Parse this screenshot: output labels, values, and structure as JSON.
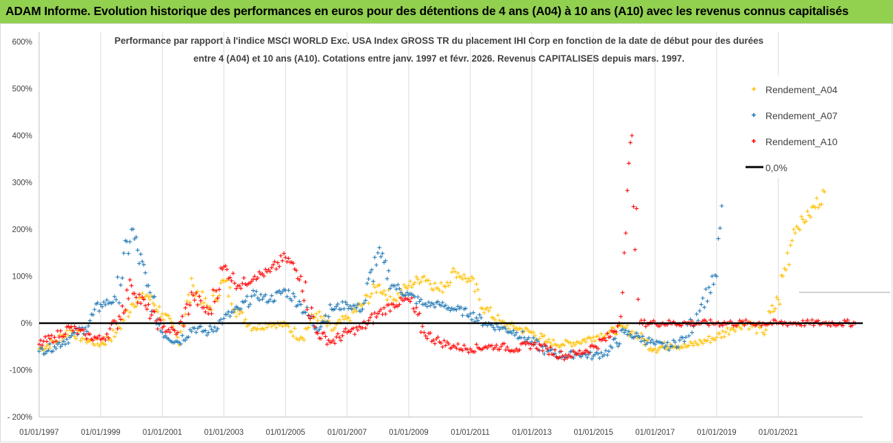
{
  "banner": {
    "title": "ADAM Informe. Evolution historique des performances en euros pour des détentions de 4 ans (A04) à 10 ans (A10) avec les revenus connus capitalisés"
  },
  "chart_data": {
    "type": "scatter",
    "title_line1": "Performance par rapport à l'indice MSCI WORLD Exc. USA Index GROSS TR  du placement IHI Corp en fonction de la date de début pour des durées",
    "title_line2": "entre 4 (A04) et 10 ans (A10). Cotations entre janv. 1997 et févr. 2026. Revenus CAPITALISES depuis mars. 1997.",
    "x_range": [
      "1997-01-01",
      "2023-09-30"
    ],
    "x_ticks": [
      "01/01/1997",
      "01/01/1999",
      "01/01/2001",
      "01/01/2003",
      "01/01/2005",
      "01/01/2007",
      "01/01/2009",
      "01/01/2011",
      "01/01/2013",
      "01/01/2015",
      "01/01/2017",
      "01/01/2019",
      "01/01/2021"
    ],
    "y_range": [
      -200,
      600
    ],
    "y_ticks": [
      "- 200%",
      "-100%",
      "0%",
      "100%",
      "200%",
      "300%",
      "400%",
      "500%",
      "600%"
    ],
    "grid": "vertical lines at x ticks",
    "legend_position": "right",
    "zero_line": {
      "name": "0,0%",
      "value": 0,
      "color": "#000000"
    },
    "series": [
      {
        "name": "Rendement_A04",
        "color": "#ffc000",
        "x": [
          "1997-01",
          "1997-07",
          "1998-01",
          "1998-07",
          "1999-01",
          "1999-07",
          "2000-01",
          "2000-07",
          "2001-01",
          "2001-07",
          "2002-01",
          "2002-07",
          "2003-01",
          "2003-07",
          "2004-01",
          "2004-07",
          "2005-01",
          "2005-07",
          "2006-01",
          "2006-07",
          "2007-01",
          "2007-07",
          "2008-01",
          "2008-07",
          "2009-01",
          "2009-07",
          "2010-01",
          "2010-07",
          "2011-01",
          "2011-07",
          "2012-01",
          "2012-07",
          "2013-01",
          "2013-07",
          "2014-01",
          "2014-07",
          "2015-01",
          "2015-07",
          "2016-01",
          "2016-07",
          "2017-01",
          "2017-07",
          "2018-01",
          "2018-07",
          "2019-01",
          "2019-07",
          "2020-01",
          "2020-07",
          "2021-01",
          "2021-07",
          "2022-01",
          "2022-07"
        ],
        "values": [
          -55,
          -40,
          -15,
          -35,
          -45,
          -20,
          40,
          60,
          20,
          -30,
          80,
          30,
          90,
          20,
          -10,
          0,
          -5,
          -30,
          20,
          -15,
          10,
          40,
          80,
          50,
          80,
          100,
          70,
          110,
          90,
          30,
          0,
          -10,
          -20,
          -40,
          -45,
          -40,
          -30,
          -20,
          -10,
          -30,
          -55,
          -45,
          -50,
          -40,
          -30,
          -10,
          0,
          -20,
          50,
          200,
          230,
          280
        ]
      },
      {
        "name": "Rendement_A07",
        "color": "#1f77b4",
        "x": [
          "1997-01",
          "1997-07",
          "1998-01",
          "1998-07",
          "1999-01",
          "1999-07",
          "2000-01",
          "2000-07",
          "2001-01",
          "2001-07",
          "2002-01",
          "2002-07",
          "2003-01",
          "2003-07",
          "2004-01",
          "2004-07",
          "2005-01",
          "2005-07",
          "2006-01",
          "2006-07",
          "2007-01",
          "2007-07",
          "2008-01",
          "2008-07",
          "2009-01",
          "2009-07",
          "2010-01",
          "2010-07",
          "2011-01",
          "2011-07",
          "2012-01",
          "2012-07",
          "2013-01",
          "2013-07",
          "2014-01",
          "2014-07",
          "2015-01",
          "2015-07",
          "2016-01",
          "2016-07",
          "2017-01",
          "2017-07",
          "2018-01",
          "2018-07",
          "2019-01",
          "2019-03"
        ],
        "values": [
          -60,
          -50,
          -30,
          -10,
          40,
          50,
          200,
          80,
          -20,
          -40,
          -10,
          -20,
          10,
          30,
          60,
          50,
          70,
          40,
          -10,
          30,
          40,
          30,
          150,
          80,
          60,
          40,
          40,
          30,
          20,
          0,
          -10,
          -20,
          -40,
          -60,
          -70,
          -65,
          -70,
          -60,
          -20,
          -30,
          -45,
          -50,
          -30,
          40,
          100,
          250
        ]
      },
      {
        "name": "Rendement_A10",
        "color": "#ff0000",
        "x": [
          "1997-01",
          "1997-07",
          "1998-01",
          "1998-07",
          "1999-01",
          "1999-07",
          "2000-01",
          "2000-07",
          "2001-01",
          "2001-07",
          "2002-01",
          "2002-07",
          "2003-01",
          "2003-07",
          "2004-01",
          "2004-07",
          "2005-01",
          "2005-07",
          "2006-01",
          "2006-07",
          "2007-01",
          "2007-07",
          "2008-01",
          "2008-07",
          "2009-01",
          "2009-07",
          "2010-01",
          "2010-07",
          "2011-01",
          "2011-07",
          "2012-01",
          "2012-07",
          "2013-01",
          "2013-07",
          "2014-01",
          "2014-07",
          "2015-01",
          "2015-07",
          "2015-11",
          "2016-01",
          "2016-04",
          "2016-07",
          "2017-01",
          "2017-07",
          "2018-01",
          "2018-07",
          "2019-01",
          "2019-07",
          "2020-01",
          "2020-07",
          "2021-01",
          "2021-07",
          "2022-01",
          "2022-07",
          "2023-01",
          "2023-07"
        ],
        "values": [
          -45,
          -30,
          -10,
          -25,
          -35,
          0,
          80,
          30,
          -10,
          -20,
          60,
          20,
          120,
          80,
          100,
          110,
          140,
          100,
          -20,
          -40,
          -20,
          -10,
          20,
          40,
          50,
          -20,
          -40,
          -50,
          -55,
          -50,
          -50,
          -55,
          -45,
          -55,
          -70,
          -65,
          -50,
          -30,
          0,
          150,
          400,
          0,
          0,
          0,
          0,
          0,
          0,
          0,
          0,
          0,
          0,
          0,
          0,
          0,
          0,
          0
        ]
      }
    ]
  }
}
